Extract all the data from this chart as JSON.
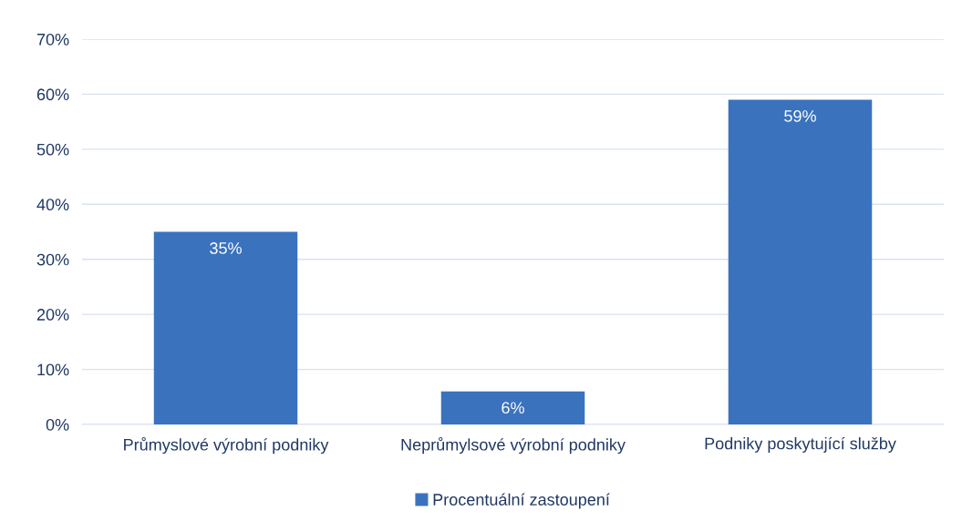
{
  "chart_data": {
    "type": "bar",
    "categories": [
      "Průmyslové výrobní podniky",
      "Neprůmylsové výrobní podniky",
      "Podniky poskytující služby"
    ],
    "series": [
      {
        "name": "Procentuální zastoupení",
        "color": "#3a72bd",
        "values": [
          35,
          6,
          59
        ],
        "value_labels": [
          "35%",
          "6%",
          "59%"
        ]
      }
    ],
    "ylim": [
      0,
      70
    ],
    "yticks": [
      {
        "value": 0,
        "label": "0%"
      },
      {
        "value": 10,
        "label": "10%"
      },
      {
        "value": 20,
        "label": "20%"
      },
      {
        "value": 30,
        "label": "30%"
      },
      {
        "value": 40,
        "label": "40%"
      },
      {
        "value": 50,
        "label": "50%"
      },
      {
        "value": 60,
        "label": "60%"
      },
      {
        "value": 70,
        "label": "70%"
      }
    ],
    "grid": "y",
    "legend": "bottom"
  }
}
